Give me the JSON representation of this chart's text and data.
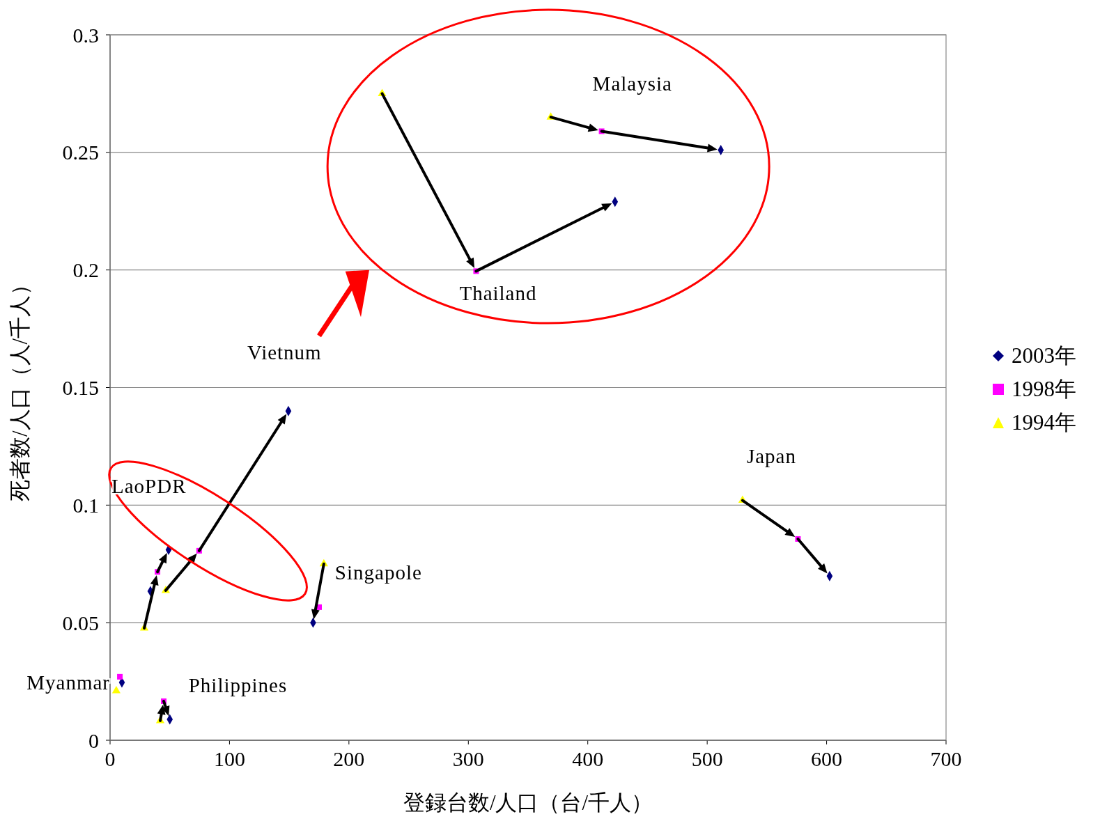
{
  "chart_data": {
    "type": "scatter",
    "xlabel": "登録台数/人口（台/千人）",
    "ylabel": "死者数/人口（人/千人）",
    "xlim": [
      0,
      700
    ],
    "xticks": [
      0,
      100,
      200,
      300,
      400,
      500,
      600,
      700
    ],
    "ylim": [
      0,
      0.3
    ],
    "yticks": [
      0,
      0.05,
      0.1,
      0.15,
      0.2,
      0.25,
      0.3
    ],
    "grid": "y",
    "legend": "right",
    "series": [
      {
        "name": "2003年",
        "color": "#000080",
        "marker": "diamond",
        "x": [
          9.9,
          49,
          33.8,
          149.3,
          50,
          170,
          422.8,
          511.4,
          602.5
        ],
        "values": [
          0.0246,
          0.081,
          0.0634,
          0.14,
          0.0089,
          0.05,
          0.229,
          0.251,
          0.0698
        ]
      },
      {
        "name": "1998年",
        "color": "#ff00ff",
        "marker": "square",
        "x": [
          8.2,
          39.7,
          null,
          74.6,
          44.9,
          175,
          306.5,
          411.6,
          576
        ],
        "values": [
          0.027,
          0.0716,
          null,
          0.0806,
          0.0166,
          0.0566,
          0.1995,
          0.259,
          0.0856
        ]
      },
      {
        "name": "1994年",
        "color": "#ffff00",
        "marker": "triangle",
        "x": [
          5.2,
          28.6,
          null,
          46.6,
          42,
          179,
          227.8,
          369,
          529.6
        ],
        "values": [
          0.021,
          0.0477,
          null,
          0.0637,
          0.0083,
          0.075,
          0.275,
          0.265,
          0.102
        ]
      }
    ],
    "annotations": [
      {
        "text": "Myanmar",
        "x": 9.9,
        "y": 0.0246
      },
      {
        "text": "LaoPDR",
        "x": 49,
        "y": 0.081
      },
      {
        "text": "Vietnum",
        "x": 149.3,
        "y": 0.14
      },
      {
        "text": "Philippines",
        "x": 50,
        "y": 0.0089
      },
      {
        "text": "Singapole",
        "x": 179,
        "y": 0.075
      },
      {
        "text": "Thailand",
        "x": 306.5,
        "y": 0.1995
      },
      {
        "text": "Malaysia",
        "x": 411.6,
        "y": 0.259
      },
      {
        "text": "Japan",
        "x": 529.6,
        "y": 0.102
      }
    ]
  }
}
